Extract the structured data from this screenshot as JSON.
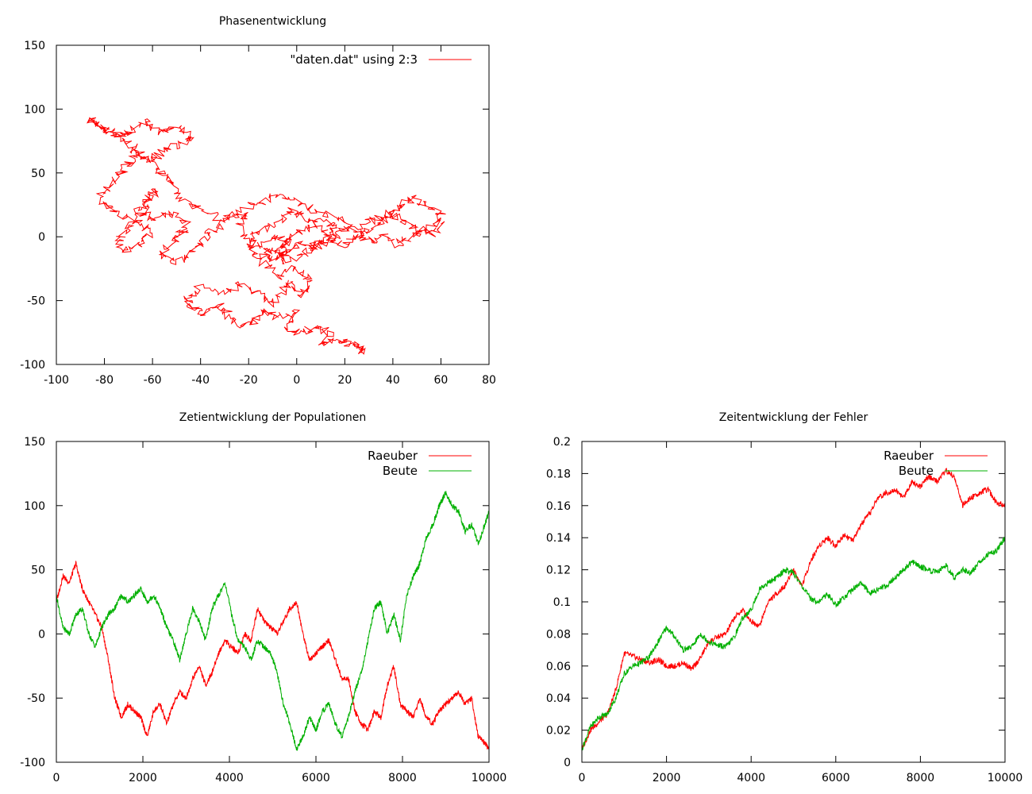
{
  "colors": {
    "red": "#ff0000",
    "green": "#00b000",
    "frame": "#000000"
  },
  "chart_data": [
    {
      "type": "line",
      "title": "Phasenentwicklung",
      "xlabel": "",
      "ylabel": "",
      "xlim": [
        -100,
        80
      ],
      "ylim": [
        -100,
        150
      ],
      "xticks": [
        "-100",
        "-80",
        "-60",
        "-40",
        "-20",
        "0",
        "20",
        "40",
        "60",
        "80"
      ],
      "yticks": [
        "-100",
        "-50",
        "0",
        "50",
        "100",
        "150"
      ],
      "legend_position": "top-right",
      "series": [
        {
          "name": "\"daten.dat\" using 2:3",
          "color": "#ff0000",
          "x": [
            25,
            28,
            22,
            18,
            10,
            14,
            8,
            2,
            -4,
            0,
            -8,
            -14,
            -18,
            -22,
            -28,
            -32,
            -38,
            -44,
            -46,
            -40,
            -30,
            -22,
            -16,
            -10,
            -6,
            -2,
            2,
            6,
            4,
            -2,
            -8,
            -14,
            -12,
            -6,
            -4,
            -10,
            -16,
            -22,
            -24,
            -20,
            -30,
            -40,
            -48,
            -52,
            -56,
            -60,
            -66,
            -70,
            -74,
            -80,
            -86,
            -84,
            -78,
            -72,
            -68,
            -62,
            -58,
            -50,
            -44,
            -48,
            -56,
            -60,
            -66,
            -70,
            -74,
            -78,
            -82,
            -78,
            -72,
            -64,
            -62,
            -66,
            -72,
            -74,
            -70,
            -64,
            -62,
            -58,
            -62,
            -66,
            -60,
            -52,
            -46,
            -48,
            -52,
            -56,
            -50,
            -44,
            -40,
            -36,
            -30,
            -24,
            -16,
            -8,
            0,
            8,
            16,
            22,
            26,
            30,
            36,
            42,
            46,
            52,
            58,
            60,
            54,
            48,
            44,
            40,
            34,
            28,
            20,
            14,
            8,
            2,
            -4,
            -8,
            -6,
            -2,
            4,
            10,
            16,
            14,
            10,
            6,
            2,
            -4,
            -10,
            -16,
            -20,
            -18,
            -12,
            -6,
            -2,
            4,
            10,
            14,
            20,
            24,
            30,
            36,
            40,
            44,
            50,
            56,
            60
          ],
          "y": [
            -86,
            -90,
            -84,
            -80,
            -84,
            -76,
            -70,
            -76,
            -70,
            -60,
            -62,
            -58,
            -66,
            -70,
            -62,
            -54,
            -60,
            -56,
            -48,
            -40,
            -44,
            -36,
            -46,
            -52,
            -42,
            -36,
            -46,
            -40,
            -30,
            -24,
            -32,
            -20,
            -8,
            -16,
            -4,
            0,
            -8,
            -2,
            10,
            18,
            14,
            20,
            30,
            40,
            50,
            58,
            66,
            74,
            80,
            86,
            92,
            88,
            82,
            78,
            84,
            90,
            80,
            86,
            78,
            72,
            68,
            60,
            64,
            56,
            48,
            40,
            30,
            22,
            16,
            10,
            2,
            -6,
            -10,
            -2,
            8,
            18,
            30,
            36,
            28,
            20,
            14,
            18,
            10,
            2,
            -4,
            -14,
            -20,
            -12,
            -4,
            4,
            12,
            20,
            26,
            34,
            28,
            20,
            16,
            8,
            2,
            -4,
            0,
            -6,
            -2,
            4,
            10,
            18,
            24,
            30,
            26,
            20,
            14,
            10,
            6,
            -2,
            -8,
            -14,
            -20,
            -14,
            -6,
            0,
            6,
            12,
            8,
            2,
            -4,
            -10,
            -6,
            -12,
            -18,
            -14,
            -6,
            2,
            8,
            14,
            20,
            14,
            6,
            -2,
            -6,
            0,
            6,
            12,
            18,
            12,
            6,
            2,
            10
          ]
        }
      ]
    },
    {
      "type": "line",
      "title": "Zetientwicklung der Populationen",
      "xlabel": "",
      "ylabel": "",
      "xlim": [
        0,
        10000
      ],
      "ylim": [
        -100,
        150
      ],
      "xticks": [
        "0",
        "2000",
        "4000",
        "6000",
        "8000",
        "10000"
      ],
      "yticks": [
        "-100",
        "-50",
        "0",
        "50",
        "100",
        "150"
      ],
      "legend_position": "top-right",
      "series": [
        {
          "name": "Raeuber",
          "color": "#ff0000",
          "x": [
            0,
            150,
            300,
            450,
            600,
            750,
            900,
            1050,
            1200,
            1350,
            1500,
            1650,
            1800,
            1950,
            2100,
            2250,
            2400,
            2550,
            2700,
            2850,
            3000,
            3150,
            3300,
            3450,
            3600,
            3750,
            3900,
            4050,
            4200,
            4350,
            4500,
            4650,
            4800,
            4950,
            5100,
            5250,
            5400,
            5550,
            5700,
            5850,
            6000,
            6150,
            6300,
            6450,
            6600,
            6750,
            6900,
            7050,
            7200,
            7350,
            7500,
            7650,
            7800,
            7950,
            8100,
            8250,
            8400,
            8550,
            8700,
            8850,
            9000,
            9150,
            9300,
            9450,
            9600,
            9750,
            9900,
            10000
          ],
          "y": [
            25,
            45,
            40,
            55,
            35,
            25,
            15,
            5,
            -20,
            -50,
            -65,
            -55,
            -60,
            -65,
            -80,
            -60,
            -55,
            -70,
            -55,
            -45,
            -50,
            -35,
            -25,
            -40,
            -30,
            -15,
            -5,
            -10,
            -15,
            0,
            -5,
            20,
            10,
            5,
            0,
            10,
            20,
            25,
            0,
            -20,
            -15,
            -10,
            -5,
            -20,
            -35,
            -35,
            -60,
            -70,
            -75,
            -60,
            -65,
            -40,
            -25,
            -55,
            -60,
            -65,
            -50,
            -65,
            -70,
            -60,
            -55,
            -50,
            -45,
            -55,
            -50,
            -80,
            -85,
            -90
          ]
        },
        {
          "name": "Beute",
          "color": "#00b000",
          "x": [
            0,
            150,
            300,
            450,
            600,
            750,
            900,
            1050,
            1200,
            1350,
            1500,
            1650,
            1800,
            1950,
            2100,
            2250,
            2400,
            2550,
            2700,
            2850,
            3000,
            3150,
            3300,
            3450,
            3600,
            3750,
            3900,
            4050,
            4200,
            4350,
            4500,
            4650,
            4800,
            4950,
            5100,
            5250,
            5400,
            5550,
            5700,
            5850,
            6000,
            6150,
            6300,
            6450,
            6600,
            6750,
            6900,
            7050,
            7200,
            7350,
            7500,
            7650,
            7800,
            7950,
            8100,
            8250,
            8400,
            8550,
            8700,
            8850,
            9000,
            9150,
            9300,
            9450,
            9600,
            9750,
            9900,
            10000
          ],
          "y": [
            30,
            5,
            0,
            15,
            20,
            0,
            -10,
            5,
            15,
            20,
            30,
            25,
            30,
            35,
            25,
            30,
            20,
            5,
            -5,
            -20,
            0,
            20,
            10,
            -5,
            20,
            30,
            40,
            15,
            -5,
            -10,
            -20,
            -5,
            -10,
            -15,
            -30,
            -55,
            -70,
            -90,
            -80,
            -65,
            -75,
            -60,
            -55,
            -70,
            -80,
            -65,
            -45,
            -30,
            -5,
            20,
            25,
            0,
            15,
            -5,
            30,
            45,
            55,
            75,
            85,
            100,
            110,
            100,
            95,
            80,
            85,
            70,
            85,
            95
          ]
        }
      ]
    },
    {
      "type": "line",
      "title": "Zeitentwicklung der Fehler",
      "xlabel": "",
      "ylabel": "",
      "xlim": [
        0,
        10000
      ],
      "ylim": [
        0,
        0.2
      ],
      "xticks": [
        "0",
        "2000",
        "4000",
        "6000",
        "8000",
        "10000"
      ],
      "yticks": [
        "0",
        "0.02",
        "0.04",
        "0.06",
        "0.08",
        "0.1",
        "0.12",
        "0.14",
        "0.16",
        "0.18",
        "0.2"
      ],
      "legend_position": "top-right",
      "series": [
        {
          "name": "Raeuber",
          "color": "#ff0000",
          "x": [
            0,
            200,
            400,
            600,
            800,
            1000,
            1200,
            1400,
            1600,
            1800,
            2000,
            2200,
            2400,
            2600,
            2800,
            3000,
            3200,
            3400,
            3600,
            3800,
            4000,
            4200,
            4400,
            4600,
            4800,
            5000,
            5200,
            5400,
            5600,
            5800,
            6000,
            6200,
            6400,
            6600,
            6800,
            7000,
            7200,
            7400,
            7600,
            7800,
            8000,
            8200,
            8400,
            8600,
            8800,
            9000,
            9200,
            9400,
            9600,
            9800,
            10000
          ],
          "y": [
            0.008,
            0.02,
            0.025,
            0.03,
            0.045,
            0.068,
            0.066,
            0.064,
            0.062,
            0.064,
            0.06,
            0.06,
            0.062,
            0.058,
            0.065,
            0.075,
            0.078,
            0.08,
            0.09,
            0.095,
            0.088,
            0.085,
            0.1,
            0.105,
            0.11,
            0.12,
            0.11,
            0.125,
            0.135,
            0.14,
            0.135,
            0.142,
            0.138,
            0.148,
            0.155,
            0.165,
            0.168,
            0.17,
            0.165,
            0.175,
            0.172,
            0.178,
            0.175,
            0.182,
            0.178,
            0.16,
            0.165,
            0.168,
            0.17,
            0.162,
            0.16
          ]
        },
        {
          "name": "Beute",
          "color": "#00b000",
          "x": [
            0,
            200,
            400,
            600,
            800,
            1000,
            1200,
            1400,
            1600,
            1800,
            2000,
            2200,
            2400,
            2600,
            2800,
            3000,
            3200,
            3400,
            3600,
            3800,
            4000,
            4200,
            4400,
            4600,
            4800,
            5000,
            5200,
            5400,
            5600,
            5800,
            6000,
            6200,
            6400,
            6600,
            6800,
            7000,
            7200,
            7400,
            7600,
            7800,
            8000,
            8200,
            8400,
            8600,
            8800,
            9000,
            9200,
            9400,
            9600,
            9800,
            10000
          ],
          "y": [
            0.008,
            0.022,
            0.028,
            0.03,
            0.04,
            0.055,
            0.06,
            0.062,
            0.066,
            0.075,
            0.084,
            0.078,
            0.07,
            0.072,
            0.08,
            0.075,
            0.073,
            0.072,
            0.078,
            0.09,
            0.095,
            0.108,
            0.112,
            0.115,
            0.12,
            0.118,
            0.11,
            0.102,
            0.1,
            0.105,
            0.098,
            0.103,
            0.108,
            0.112,
            0.105,
            0.108,
            0.11,
            0.115,
            0.12,
            0.125,
            0.122,
            0.12,
            0.118,
            0.123,
            0.115,
            0.12,
            0.118,
            0.125,
            0.13,
            0.132,
            0.14
          ]
        }
      ]
    }
  ]
}
